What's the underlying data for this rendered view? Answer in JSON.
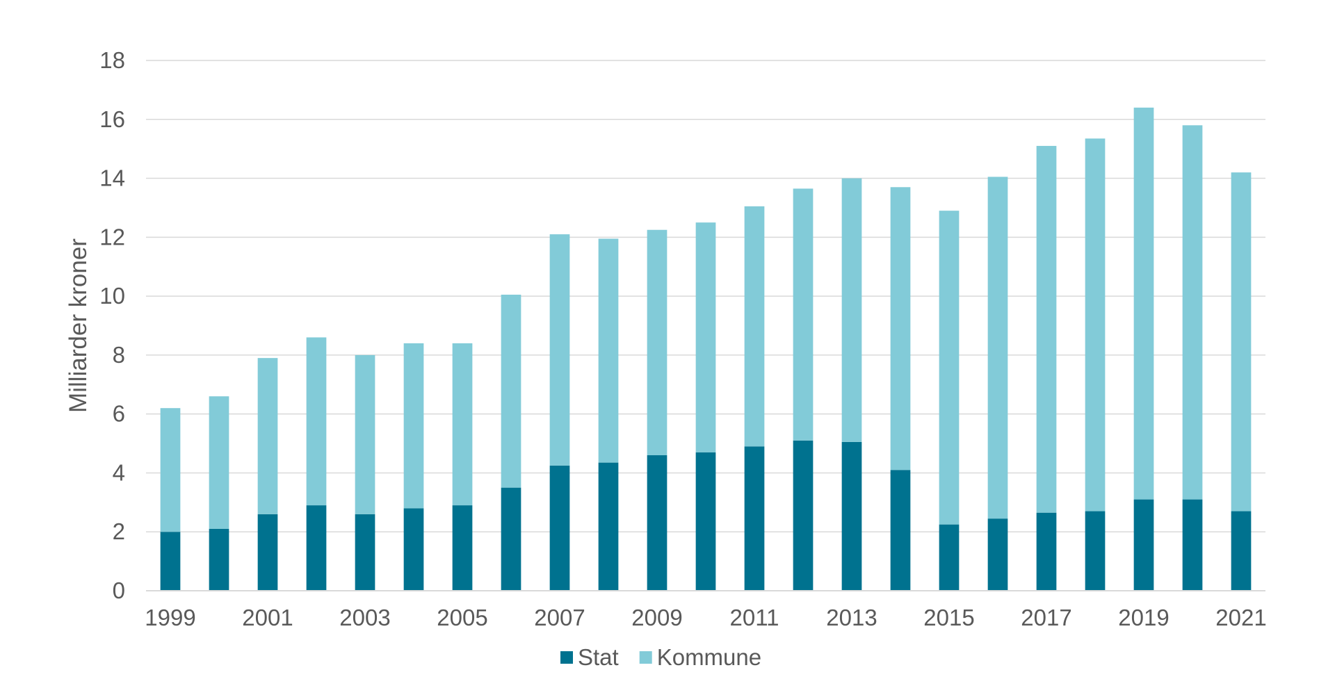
{
  "chart_data": {
    "type": "bar",
    "stacked": true,
    "title": "",
    "xlabel": "",
    "ylabel": "Milliarder kroner",
    "ylim": [
      0,
      18
    ],
    "yticks": [
      0,
      2,
      4,
      6,
      8,
      10,
      12,
      14,
      16,
      18
    ],
    "grid": true,
    "legend_position": "bottom",
    "categories": [
      "1999",
      "2000",
      "2001",
      "2002",
      "2003",
      "2004",
      "2005",
      "2006",
      "2007",
      "2008",
      "2009",
      "2010",
      "2011",
      "2012",
      "2013",
      "2014",
      "2015",
      "2016",
      "2017",
      "2018",
      "2019",
      "2020",
      "2021"
    ],
    "xtick_labels": [
      "1999",
      "2001",
      "2003",
      "2005",
      "2007",
      "2009",
      "2011",
      "2013",
      "2015",
      "2017",
      "2019",
      "2021"
    ],
    "series": [
      {
        "name": "Stat",
        "color": "#00728F",
        "values": [
          2.0,
          2.1,
          2.6,
          2.9,
          2.6,
          2.8,
          2.9,
          3.5,
          4.25,
          4.35,
          4.6,
          4.7,
          4.9,
          5.1,
          5.05,
          4.1,
          2.25,
          2.45,
          2.65,
          2.7,
          3.1,
          3.1,
          2.7
        ]
      },
      {
        "name": "Kommune",
        "color": "#82CBD8",
        "values": [
          4.2,
          4.5,
          5.3,
          5.7,
          5.4,
          5.6,
          5.5,
          6.55,
          7.85,
          7.6,
          7.65,
          7.8,
          8.15,
          8.55,
          8.95,
          9.6,
          10.65,
          11.6,
          12.45,
          12.65,
          13.3,
          12.7,
          11.5
        ]
      }
    ]
  }
}
